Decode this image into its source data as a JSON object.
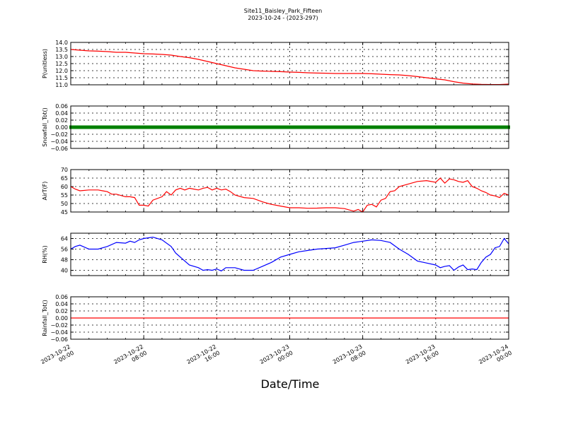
{
  "figure": {
    "title_line1": "Site11_Baisley_Park_Fifteen",
    "title_line2": "2023-10-24 - (2023-297)",
    "xlabel": "Date/Time"
  },
  "chart_data": [
    {
      "type": "line",
      "ylabel": "P(unitless)",
      "ylim": [
        11.0,
        14.0
      ],
      "yticks": [
        "14.0",
        "13.5",
        "13.0",
        "12.5",
        "12.0",
        "11.5",
        "11.0"
      ],
      "ytick_values": [
        14.0,
        13.5,
        13.0,
        12.5,
        12.0,
        11.5,
        11.0
      ],
      "grid": true,
      "series": [
        {
          "color": "#ff0000",
          "x": [
            0,
            1,
            2,
            3,
            4,
            5,
            6,
            7,
            8,
            9,
            10,
            11,
            12,
            13,
            14,
            15,
            16,
            17,
            18,
            19,
            20,
            21,
            22,
            23,
            24,
            25,
            26,
            27,
            28,
            29,
            30,
            31,
            32,
            33,
            34,
            35,
            36,
            37,
            38,
            39,
            40,
            41,
            42,
            43,
            44,
            45,
            46,
            47,
            48
          ],
          "y": [
            13.5,
            13.45,
            13.4,
            13.38,
            13.35,
            13.3,
            13.3,
            13.25,
            13.2,
            13.18,
            13.15,
            13.1,
            13.0,
            12.92,
            12.8,
            12.65,
            12.5,
            12.35,
            12.2,
            12.1,
            12.0,
            11.97,
            11.95,
            11.93,
            11.9,
            11.88,
            11.85,
            11.83,
            11.82,
            11.8,
            11.8,
            11.8,
            11.8,
            11.78,
            11.75,
            11.72,
            11.7,
            11.65,
            11.58,
            11.5,
            11.42,
            11.35,
            11.22,
            11.12,
            11.06,
            11.03,
            11.02,
            11.02,
            11.05
          ]
        }
      ]
    },
    {
      "type": "line",
      "ylabel": "Snowfall_Tot()",
      "ylim": [
        -0.06,
        0.06
      ],
      "yticks": [
        "0.06",
        "0.04",
        "0.02",
        "0.00",
        "−0.02",
        "−0.04",
        "−0.06"
      ],
      "ytick_values": [
        0.06,
        0.04,
        0.02,
        0.0,
        -0.02,
        -0.04,
        -0.06
      ],
      "grid": true,
      "markers": true,
      "series": [
        {
          "color": "#008000",
          "x": [
            0,
            48
          ],
          "y": [
            0.0,
            0.0
          ]
        }
      ]
    },
    {
      "type": "line",
      "ylabel": "AirT(F)",
      "ylim": [
        45,
        70
      ],
      "yticks": [
        "70",
        "65",
        "60",
        "55",
        "50",
        "45"
      ],
      "ytick_values": [
        70,
        65,
        60,
        55,
        50,
        45
      ],
      "grid": true,
      "series": [
        {
          "color": "#ff0000",
          "x": [
            0,
            0.5,
            1,
            2,
            3,
            3.5,
            4,
            4.5,
            5,
            6,
            6.5,
            7,
            7.5,
            8,
            8.5,
            9,
            10,
            10.5,
            11,
            11.5,
            12,
            12.5,
            13,
            13.5,
            14,
            14.5,
            15,
            15.5,
            16,
            16.5,
            17,
            17.5,
            18,
            19,
            20,
            21,
            22,
            23,
            24,
            25,
            26,
            27,
            28,
            29,
            30,
            31,
            31.5,
            32,
            32.5,
            33,
            33.5,
            34,
            34.5,
            35,
            35.5,
            36,
            37,
            38,
            39,
            40,
            40.5,
            41,
            41.5,
            42,
            42.5,
            43,
            43.5,
            44,
            44.5,
            45,
            45.5,
            46,
            46.5,
            47,
            47.5,
            48
          ],
          "y": [
            60,
            58.5,
            57.5,
            58,
            58,
            57.5,
            57,
            55.5,
            55.5,
            54,
            54,
            53.5,
            49,
            49,
            48.5,
            52,
            54,
            57,
            55,
            58,
            59,
            58,
            59,
            58.5,
            58,
            59,
            59.5,
            58,
            59,
            58,
            58.5,
            57,
            55,
            53.5,
            53,
            51,
            49.5,
            48.5,
            47.5,
            47.5,
            47.2,
            47.3,
            47.5,
            47.5,
            47,
            45.5,
            46.5,
            45,
            49,
            49.5,
            48,
            52,
            53,
            57,
            57.5,
            60,
            61.5,
            63,
            63.5,
            62.5,
            65,
            62,
            64.5,
            64,
            63,
            62.5,
            63.5,
            60,
            59,
            57.5,
            56.5,
            55,
            54.5,
            53.5,
            56,
            55
          ]
        }
      ]
    },
    {
      "type": "line",
      "ylabel": "RH(%)",
      "ylim": [
        36,
        68
      ],
      "yticks": [
        "64",
        "56",
        "48",
        "40"
      ],
      "ytick_values": [
        64,
        56,
        48,
        40
      ],
      "grid": true,
      "series": [
        {
          "color": "#0000ff",
          "x": [
            0,
            0.5,
            1,
            2,
            3,
            4,
            5,
            6,
            6.5,
            7,
            7.5,
            8,
            9,
            10,
            11,
            11.5,
            12,
            13,
            14,
            14.5,
            15,
            15.5,
            16,
            16.5,
            17,
            18,
            19,
            20,
            21,
            22,
            23,
            24,
            25,
            26,
            27,
            28,
            29,
            30,
            31,
            32,
            33,
            34,
            35,
            36,
            37,
            38,
            39,
            40,
            40.5,
            41,
            41.5,
            42,
            42.5,
            43,
            43.5,
            44,
            44.5,
            45,
            45.5,
            46,
            46.5,
            47,
            47.5,
            48
          ],
          "y": [
            56,
            58,
            59,
            56,
            56,
            58,
            61,
            60.5,
            62,
            61,
            63,
            64,
            65,
            63,
            58,
            53,
            50,
            44,
            42,
            40,
            40.5,
            40,
            41,
            39.5,
            42,
            42,
            40,
            40,
            43,
            46,
            50,
            52,
            54,
            55,
            56,
            56.5,
            57,
            59,
            61,
            62,
            63,
            62.5,
            61,
            56,
            52,
            47,
            45.5,
            44,
            42,
            43,
            43.5,
            40,
            42.5,
            44,
            40.5,
            41,
            40.5,
            46,
            50,
            52,
            57,
            58,
            64,
            60
          ]
        }
      ]
    },
    {
      "type": "line",
      "ylabel": "Rainfall_Tot()",
      "ylim": [
        -0.06,
        0.06
      ],
      "yticks": [
        "0.06",
        "0.04",
        "0.02",
        "0.00",
        "−0.02",
        "−0.04",
        "−0.06"
      ],
      "ytick_values": [
        0.06,
        0.04,
        0.02,
        0.0,
        -0.02,
        -0.04,
        -0.06
      ],
      "grid": true,
      "series": [
        {
          "color": "#ff0000",
          "x": [
            0,
            48
          ],
          "y": [
            0.0,
            0.0
          ]
        }
      ]
    }
  ],
  "x_axis": {
    "range_hours": [
      0,
      48
    ],
    "tick_hours": [
      0,
      8,
      16,
      24,
      32,
      40,
      48
    ],
    "tick_labels": [
      [
        "2023-10-22",
        "00:00"
      ],
      [
        "2023-10-22",
        "08:00"
      ],
      [
        "2023-10-22",
        "16:00"
      ],
      [
        "2023-10-23",
        "00:00"
      ],
      [
        "2023-10-23",
        "08:00"
      ],
      [
        "2023-10-23",
        "16:00"
      ],
      [
        "2023-10-24",
        "00:00"
      ]
    ]
  }
}
